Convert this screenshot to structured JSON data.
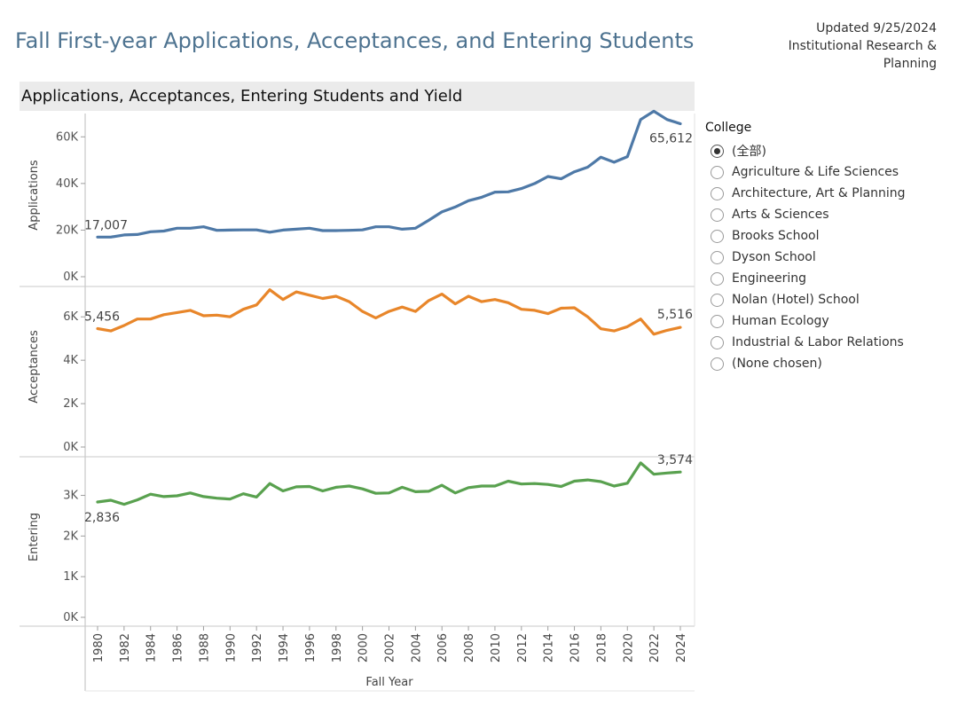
{
  "header": {
    "title": "Fall First-year Applications, Acceptances, and Entering Students",
    "updated_line1": "Updated 9/25/2024",
    "updated_line2": "Institutional Research &",
    "updated_line3": "Planning"
  },
  "subheader": "Applications, Acceptances, Entering Students and Yield",
  "legend": {
    "title": "College",
    "options": [
      {
        "label": "(全部)",
        "selected": true
      },
      {
        "label": "Agriculture & Life Sciences",
        "selected": false
      },
      {
        "label": "Architecture, Art & Planning",
        "selected": false
      },
      {
        "label": "Arts & Sciences",
        "selected": false
      },
      {
        "label": "Brooks School",
        "selected": false
      },
      {
        "label": "Dyson School",
        "selected": false
      },
      {
        "label": "Engineering",
        "selected": false
      },
      {
        "label": "Nolan (Hotel) School",
        "selected": false
      },
      {
        "label": "Human Ecology",
        "selected": false
      },
      {
        "label": "Industrial & Labor Relations",
        "selected": false
      },
      {
        "label": "(None chosen)",
        "selected": false
      }
    ]
  },
  "colors": {
    "applications": "#4e79a7",
    "acceptances": "#e8862a",
    "entering": "#59a14f"
  },
  "chart_data": {
    "type": "line",
    "xlabel": "Fall Year",
    "x": [
      1980,
      1981,
      1982,
      1983,
      1984,
      1985,
      1986,
      1987,
      1988,
      1989,
      1990,
      1991,
      1992,
      1993,
      1994,
      1995,
      1996,
      1997,
      1998,
      1999,
      2000,
      2001,
      2002,
      2003,
      2004,
      2005,
      2006,
      2007,
      2008,
      2009,
      2010,
      2011,
      2012,
      2013,
      2014,
      2015,
      2016,
      2017,
      2018,
      2019,
      2020,
      2021,
      2022,
      2023,
      2024
    ],
    "x_ticks": [
      "1980",
      "1982",
      "1984",
      "1986",
      "1988",
      "1990",
      "1992",
      "1994",
      "1996",
      "1998",
      "2000",
      "2002",
      "2004",
      "2006",
      "2008",
      "2010",
      "2012",
      "2014",
      "2016",
      "2018",
      "2020",
      "2022",
      "2024"
    ],
    "panels": [
      {
        "name": "applications",
        "ylabel": "Applications",
        "ylim": [
          0,
          70000
        ],
        "y_ticks": [
          {
            "v": 0,
            "label": "0K"
          },
          {
            "v": 20000,
            "label": "20K"
          },
          {
            "v": 40000,
            "label": "40K"
          },
          {
            "v": 60000,
            "label": "60K"
          }
        ],
        "values": [
          17007,
          17000,
          17900,
          18100,
          19300,
          19600,
          20800,
          20800,
          21400,
          19900,
          20000,
          20100,
          20100,
          19100,
          20000,
          20400,
          20800,
          19800,
          19800,
          19900,
          20100,
          21400,
          21400,
          20400,
          20800,
          24200,
          27800,
          29900,
          32600,
          34100,
          36300,
          36400,
          37800,
          40000,
          43000,
          42000,
          45000,
          47000,
          51300,
          49100,
          51500,
          67400,
          71000,
          67400,
          65612
        ],
        "start_label": "17,007",
        "end_label": "65,612"
      },
      {
        "name": "acceptances",
        "ylabel": "Acceptances",
        "ylim": [
          0,
          7400
        ],
        "y_ticks": [
          {
            "v": 0,
            "label": "0K"
          },
          {
            "v": 2000,
            "label": "2K"
          },
          {
            "v": 4000,
            "label": "4K"
          },
          {
            "v": 6000,
            "label": "6K"
          }
        ],
        "values": [
          5456,
          5350,
          5600,
          5900,
          5900,
          6100,
          6200,
          6300,
          6050,
          6080,
          6000,
          6350,
          6550,
          7250,
          6800,
          7150,
          7000,
          6850,
          6950,
          6700,
          6250,
          5950,
          6250,
          6450,
          6250,
          6750,
          7050,
          6600,
          6950,
          6700,
          6800,
          6650,
          6350,
          6300,
          6150,
          6400,
          6420,
          6000,
          5450,
          5350,
          5550,
          5900,
          5200,
          5380,
          5516
        ],
        "start_label": "5,456",
        "end_label": "5,516"
      },
      {
        "name": "entering",
        "ylabel": "Entering",
        "ylim": [
          0,
          3950
        ],
        "y_ticks": [
          {
            "v": 0,
            "label": "0K"
          },
          {
            "v": 1000,
            "label": "1K"
          },
          {
            "v": 2000,
            "label": "2K"
          },
          {
            "v": 3000,
            "label": "3K"
          }
        ],
        "values": [
          2836,
          2880,
          2780,
          2890,
          3030,
          2970,
          2990,
          3060,
          2970,
          2930,
          2910,
          3040,
          2960,
          3290,
          3110,
          3210,
          3220,
          3110,
          3200,
          3230,
          3160,
          3050,
          3060,
          3200,
          3090,
          3100,
          3250,
          3060,
          3190,
          3230,
          3230,
          3350,
          3280,
          3290,
          3270,
          3220,
          3350,
          3380,
          3340,
          3230,
          3300,
          3800,
          3520,
          3550,
          3574
        ],
        "start_label": "2,836",
        "end_label": "3,574"
      }
    ]
  }
}
